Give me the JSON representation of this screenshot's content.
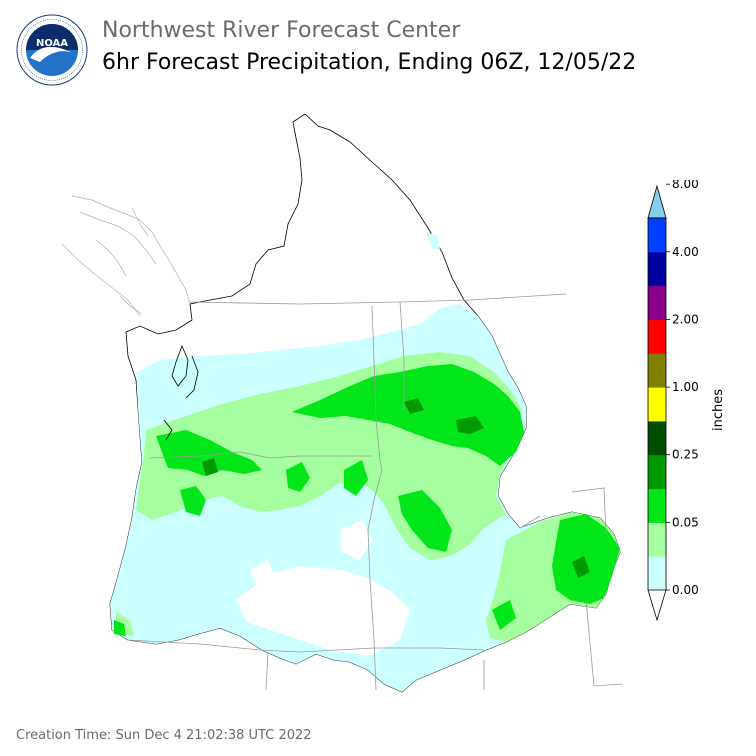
{
  "header": {
    "agency": "Northwest River Forecast Center",
    "product": "6hr Forecast Precipitation, Ending 06Z, 12/05/22"
  },
  "logo": {
    "ring_text": "NATIONAL OCEANIC AND ATMOSPHERIC ADMINISTRATION · U.S. DEPARTMENT OF COMMERCE",
    "center_text": "NOAA"
  },
  "legend": {
    "units": "inches",
    "tick_labels": [
      "0.00",
      "0.05",
      "0.25",
      "1.00",
      "2.00",
      "4.00",
      "8.00"
    ],
    "bins": [
      {
        "color": "#ffffff"
      },
      {
        "color": "#ccffff"
      },
      {
        "color": "#a6ff9e"
      },
      {
        "color": "#00e619"
      },
      {
        "color": "#009900"
      },
      {
        "color": "#004d00"
      },
      {
        "color": "#ffff00"
      },
      {
        "color": "#808000"
      },
      {
        "color": "#ff0000"
      },
      {
        "color": "#8b008b"
      },
      {
        "color": "#0000a0"
      },
      {
        "color": "#0040ff"
      },
      {
        "color": "#87ceeb"
      }
    ],
    "extend_low": "open triangle",
    "extend_high": "sky-blue triangle"
  },
  "footer": {
    "creation_time": "Creation Time: Sun Dec 4 21:02:38 UTC 2022"
  }
}
